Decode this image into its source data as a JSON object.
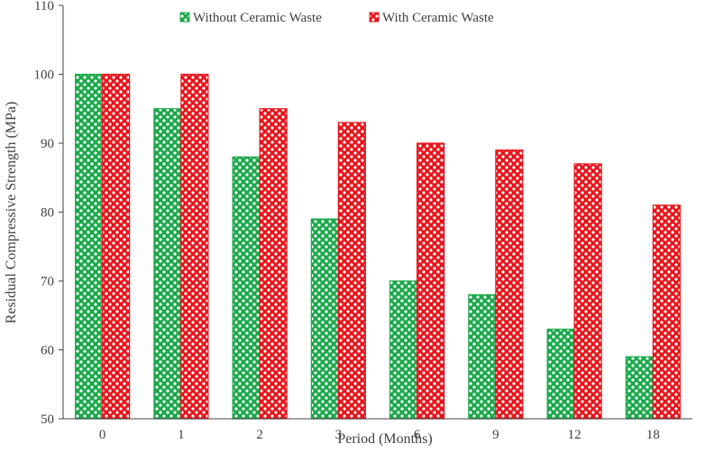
{
  "chart_data": {
    "type": "bar",
    "title": "",
    "xlabel": "Period (Months)",
    "ylabel": "Residual Compressive Strength (MPa)",
    "categories": [
      "0",
      "1",
      "2",
      "3",
      "6",
      "9",
      "12",
      "18"
    ],
    "ylim": [
      50,
      110
    ],
    "yticks": [
      50,
      60,
      70,
      80,
      90,
      100,
      110
    ],
    "grid": false,
    "legend_position": "top",
    "series": [
      {
        "name": "Without Ceramic Waste",
        "color": "#1aa84a",
        "values": [
          100,
          95,
          88,
          79,
          70,
          68,
          63,
          59
        ]
      },
      {
        "name": "With Ceramic Waste",
        "color": "#e8141b",
        "values": [
          100,
          100,
          95,
          93,
          90,
          89,
          87,
          81
        ]
      }
    ]
  }
}
